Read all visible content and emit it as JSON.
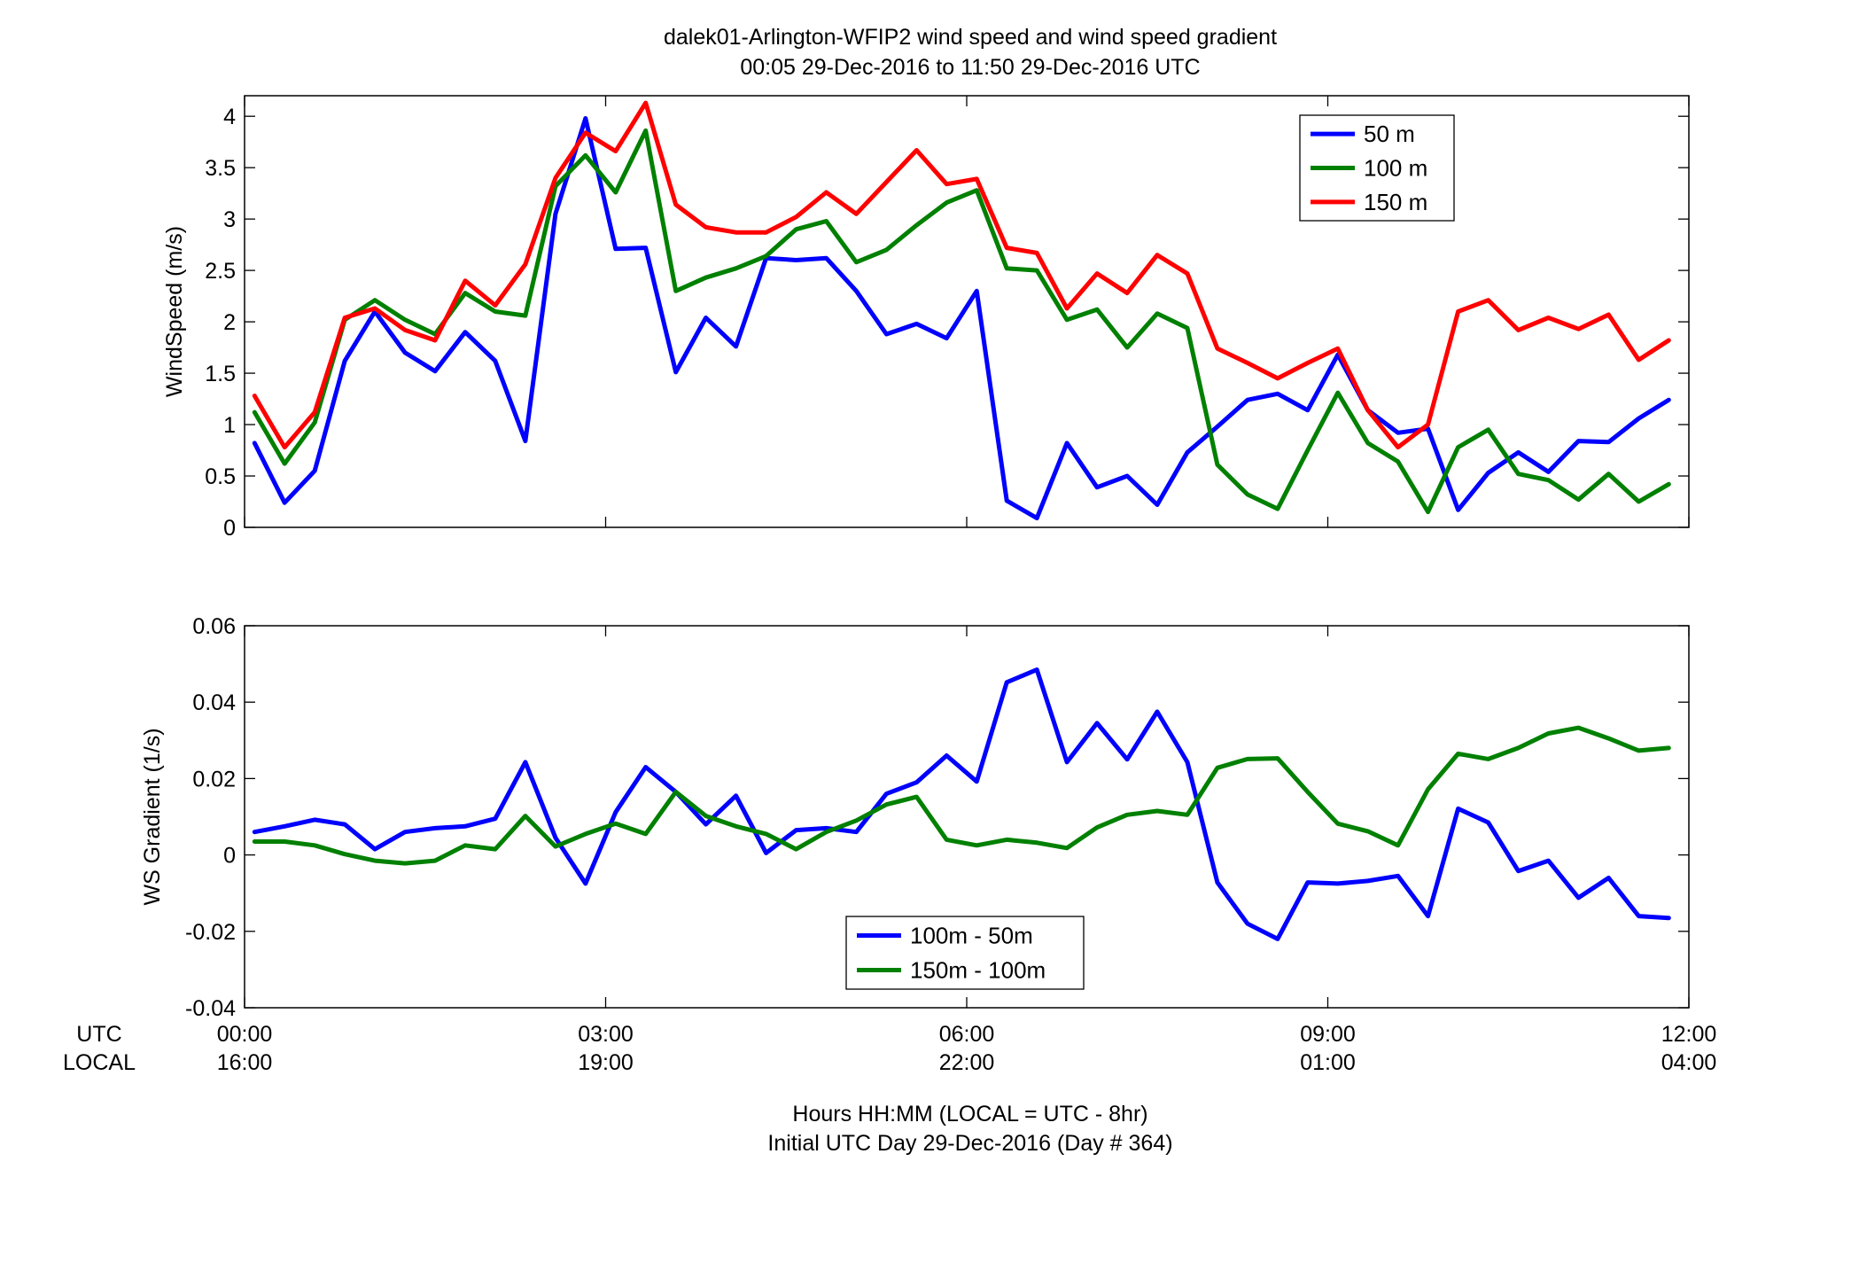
{
  "figure": {
    "title_line1": "dalek01-Arlington-WFIP2  wind speed and wind speed gradient",
    "title_line2": "00:05 29-Dec-2016 to 11:50 29-Dec-2016  UTC",
    "xlabel_line1": "Hours HH:MM  (LOCAL = UTC - 8hr)",
    "xlabel_line2": "Initial UTC Day 29-Dec-2016 (Day # 364)",
    "utc_label": "UTC",
    "local_label": "LOCAL"
  },
  "x_ticks": [
    {
      "hour": 0,
      "utc": "00:00",
      "local": "16:00"
    },
    {
      "hour": 3,
      "utc": "03:00",
      "local": "19:00"
    },
    {
      "hour": 6,
      "utc": "06:00",
      "local": "22:00"
    },
    {
      "hour": 9,
      "utc": "09:00",
      "local": "01:00"
    },
    {
      "hour": 12,
      "utc": "12:00",
      "local": "04:00"
    }
  ],
  "chart_data": [
    {
      "type": "line",
      "ylabel": "WindSpeed (m/s)",
      "xlim": [
        0,
        12
      ],
      "ylim": [
        0,
        4.2
      ],
      "yticks": [
        0,
        0.5,
        1,
        1.5,
        2,
        2.5,
        3,
        3.5,
        4
      ],
      "ytick_labels": [
        "0",
        "0.5",
        "1",
        "1.5",
        "2",
        "2.5",
        "3",
        "3.5",
        "4"
      ],
      "legend_position": "top-right",
      "x_hours": [
        0.083,
        0.333,
        0.583,
        0.833,
        1.083,
        1.333,
        1.583,
        1.833,
        2.083,
        2.333,
        2.583,
        2.833,
        3.083,
        3.333,
        3.583,
        3.833,
        4.083,
        4.333,
        4.583,
        4.833,
        5.083,
        5.333,
        5.583,
        5.833,
        6.083,
        6.333,
        6.583,
        6.833,
        7.083,
        7.333,
        7.583,
        7.833,
        8.083,
        8.333,
        8.583,
        8.833,
        9.083,
        9.333,
        9.583,
        9.833,
        10.083,
        10.333,
        10.583,
        10.833,
        11.083,
        11.333,
        11.583,
        11.833
      ],
      "series": [
        {
          "name": "50 m",
          "color": "#0000ff",
          "values": [
            0.82,
            0.24,
            0.55,
            1.62,
            2.1,
            1.7,
            1.52,
            1.9,
            1.62,
            0.84,
            3.05,
            3.98,
            2.71,
            2.72,
            1.51,
            2.04,
            1.76,
            2.62,
            2.6,
            2.62,
            2.3,
            1.88,
            1.98,
            1.84,
            2.3,
            0.26,
            0.09,
            0.82,
            0.39,
            0.5,
            0.22,
            0.73,
            0.98,
            1.24,
            1.3,
            1.14,
            1.68,
            1.14,
            0.92,
            0.96,
            0.17,
            0.53,
            0.73,
            0.54,
            0.84,
            0.83,
            1.06,
            1.24
          ]
        },
        {
          "name": "100 m",
          "color": "#008000",
          "values": [
            1.12,
            0.62,
            1.02,
            2.02,
            2.21,
            2.02,
            1.88,
            2.28,
            2.1,
            2.06,
            3.32,
            3.62,
            3.26,
            3.86,
            2.3,
            2.43,
            2.52,
            2.64,
            2.9,
            2.98,
            2.58,
            2.7,
            2.94,
            3.16,
            3.28,
            2.52,
            2.5,
            2.02,
            2.12,
            1.75,
            2.08,
            1.94,
            0.61,
            0.32,
            0.18,
            0.75,
            1.31,
            0.82,
            0.64,
            0.15,
            0.78,
            0.95,
            0.52,
            0.46,
            0.27,
            0.52,
            0.25,
            0.42
          ]
        },
        {
          "name": "150 m",
          "color": "#ff0000",
          "values": [
            1.28,
            0.78,
            1.12,
            2.04,
            2.13,
            1.92,
            1.82,
            2.4,
            2.16,
            2.56,
            3.4,
            3.84,
            3.66,
            4.13,
            3.14,
            2.92,
            2.87,
            2.87,
            3.02,
            3.26,
            3.05,
            3.36,
            3.67,
            3.34,
            3.39,
            2.72,
            2.67,
            2.13,
            2.47,
            2.28,
            2.65,
            2.47,
            1.74,
            1.6,
            1.45,
            1.6,
            1.74,
            1.14,
            0.78,
            1.0,
            2.1,
            2.21,
            1.92,
            2.04,
            1.93,
            2.07,
            1.63,
            1.82
          ]
        }
      ]
    },
    {
      "type": "line",
      "ylabel": "WS Gradient (1/s)",
      "xlim": [
        0,
        12
      ],
      "ylim": [
        -0.04,
        0.06
      ],
      "yticks": [
        -0.04,
        -0.02,
        0,
        0.02,
        0.04,
        0.06
      ],
      "ytick_labels": [
        "-0.04",
        "-0.02",
        "0",
        "0.02",
        "0.04",
        "0.06"
      ],
      "legend_position": "bottom-center",
      "x_hours": [
        0.083,
        0.333,
        0.583,
        0.833,
        1.083,
        1.333,
        1.583,
        1.833,
        2.083,
        2.333,
        2.583,
        2.833,
        3.083,
        3.333,
        3.583,
        3.833,
        4.083,
        4.333,
        4.583,
        4.833,
        5.083,
        5.333,
        5.583,
        5.833,
        6.083,
        6.333,
        6.583,
        6.833,
        7.083,
        7.333,
        7.583,
        7.833,
        8.083,
        8.333,
        8.583,
        8.833,
        9.083,
        9.333,
        9.583,
        9.833,
        10.083,
        10.333,
        10.583,
        10.833,
        11.083,
        11.333,
        11.583,
        11.833
      ],
      "series": [
        {
          "name": "100m - 50m",
          "color": "#0000ff",
          "values": [
            0.006,
            0.0075,
            0.0092,
            0.008,
            0.0015,
            0.006,
            0.007,
            0.0075,
            0.0095,
            0.0243,
            0.0045,
            -0.0075,
            0.0112,
            0.023,
            0.0165,
            0.008,
            0.0155,
            0.0005,
            0.0065,
            0.007,
            0.006,
            0.016,
            0.019,
            0.026,
            0.0192,
            0.0452,
            0.0485,
            0.0243,
            0.0345,
            0.025,
            0.0375,
            0.0243,
            -0.0072,
            -0.018,
            -0.022,
            -0.0072,
            -0.0075,
            -0.0068,
            -0.0055,
            -0.016,
            0.0121,
            0.0085,
            -0.0042,
            -0.0015,
            -0.0112,
            -0.006,
            -0.016,
            -0.0165
          ]
        },
        {
          "name": "150m - 100m",
          "color": "#008000",
          "values": [
            0.0035,
            0.0035,
            0.0025,
            0.0002,
            -0.0015,
            -0.0022,
            -0.0015,
            0.0025,
            0.0015,
            0.0102,
            0.0022,
            0.0055,
            0.0082,
            0.0055,
            0.0165,
            0.0102,
            0.0075,
            0.0055,
            0.0015,
            0.006,
            0.009,
            0.0132,
            0.0152,
            0.004,
            0.0025,
            0.004,
            0.0032,
            0.0018,
            0.0072,
            0.0105,
            0.0115,
            0.0105,
            0.0228,
            0.0251,
            0.0253,
            0.0165,
            0.0082,
            0.0062,
            0.0025,
            0.0172,
            0.0265,
            0.0251,
            0.028,
            0.0318,
            0.0333,
            0.0305,
            0.0273,
            0.028
          ]
        }
      ]
    }
  ]
}
